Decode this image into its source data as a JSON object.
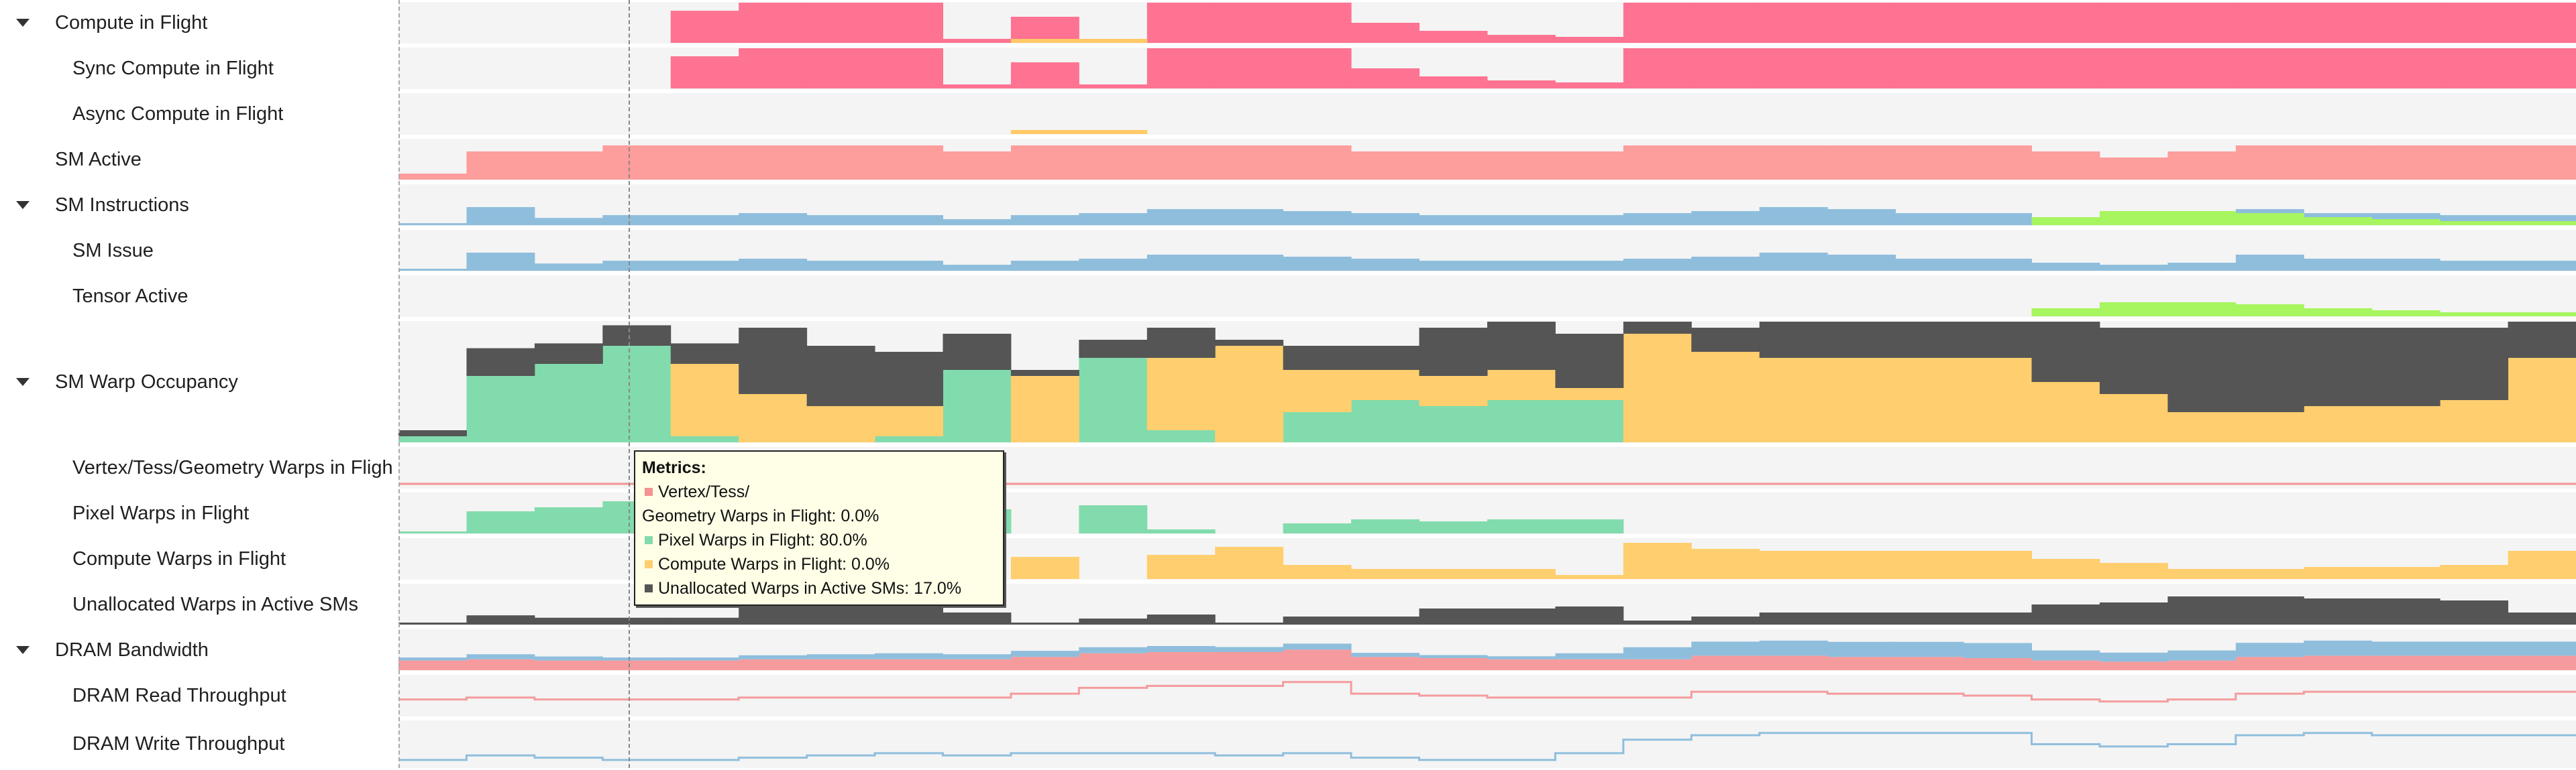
{
  "rows": [
    {
      "id": "compute-in-flight",
      "label": "Compute in Flight",
      "level": 0,
      "expanded": true
    },
    {
      "id": "sync-compute",
      "label": "Sync Compute in Flight",
      "level": 1
    },
    {
      "id": "async-compute",
      "label": "Async Compute in Flight",
      "level": 1
    },
    {
      "id": "sm-active",
      "label": "SM Active",
      "level": 0,
      "expanded": null
    },
    {
      "id": "sm-instructions",
      "label": "SM Instructions",
      "level": 0,
      "expanded": true
    },
    {
      "id": "sm-issue",
      "label": "SM Issue",
      "level": 1
    },
    {
      "id": "tensor-active",
      "label": "Tensor Active",
      "level": 1
    },
    {
      "id": "sm-warp-occupancy",
      "label": "SM Warp Occupancy",
      "level": 0,
      "expanded": true
    },
    {
      "id": "vtg-warps",
      "label": "Vertex/Tess/Geometry Warps in Fligh",
      "level": 1
    },
    {
      "id": "pixel-warps",
      "label": "Pixel Warps in Flight",
      "level": 1
    },
    {
      "id": "compute-warps",
      "label": "Compute Warps in Flight",
      "level": 1
    },
    {
      "id": "unallocated-warps",
      "label": "Unallocated Warps in Active SMs",
      "level": 1
    },
    {
      "id": "dram-bandwidth",
      "label": "DRAM Bandwidth",
      "level": 0,
      "expanded": true
    },
    {
      "id": "dram-read",
      "label": "DRAM Read Throughput",
      "level": 1
    },
    {
      "id": "dram-write",
      "label": "DRAM Write Throughput",
      "level": 1
    }
  ],
  "colors": {
    "sync": "#fe7392",
    "async": "#ffc966",
    "sm_active": "#fd9d9c",
    "sm_issue": "#8fbedd",
    "tensor": "#a7f55f",
    "vtg": "#f59292",
    "pixel": "#82dbac",
    "compute": "#ffce6e",
    "unallocated": "#555555",
    "dram_read": "#f59b9d",
    "dram_write": "#8fbedd",
    "row_bg": "#f4f4f4"
  },
  "tooltip": {
    "title": "Metrics:",
    "lines": [
      {
        "text": "Vertex/Tess/",
        "color": "#f59292"
      },
      {
        "text": "Geometry Warps in Flight: 0.0%",
        "color": null
      },
      {
        "text": "Pixel Warps in Flight: 80.0%",
        "color": "#82dbac"
      },
      {
        "text": "Compute Warps in Flight: 0.0%",
        "color": "#ffce6e"
      },
      {
        "text": "Unallocated Warps in Active SMs: 17.0%",
        "color": "#555555"
      }
    ]
  },
  "chart_data": {
    "type": "area",
    "x": [
      0,
      1,
      2,
      3,
      4,
      5,
      6,
      7,
      8,
      9,
      10,
      11,
      12,
      13,
      14,
      15,
      16,
      17,
      18,
      19,
      20,
      21,
      22,
      23,
      24,
      25,
      26,
      27,
      28,
      29,
      30,
      31
    ],
    "series": [
      {
        "name": "Sync Compute in Flight",
        "values": [
          0,
          0,
          0,
          0,
          0.8,
          1,
          1,
          1,
          0.1,
          0.65,
          0.1,
          1,
          1,
          1,
          0.5,
          0.3,
          0.2,
          0.15,
          1,
          1,
          1,
          1,
          1,
          1,
          1,
          1,
          1,
          1,
          1,
          1,
          1,
          1
        ]
      },
      {
        "name": "Async Compute in Flight",
        "values": [
          0,
          0,
          0,
          0,
          0,
          0,
          0,
          0,
          0,
          0.1,
          0.1,
          0,
          0,
          0,
          0,
          0,
          0,
          0,
          0,
          0,
          0,
          0,
          0,
          0,
          0,
          0,
          0,
          0,
          0,
          0,
          0,
          0
        ]
      },
      {
        "name": "SM Active",
        "values": [
          0.15,
          0.7,
          0.7,
          0.85,
          0.85,
          0.85,
          0.85,
          0.85,
          0.7,
          0.85,
          0.85,
          0.85,
          0.85,
          0.85,
          0.7,
          0.7,
          0.7,
          0.7,
          0.85,
          0.85,
          0.85,
          0.85,
          0.85,
          0.85,
          0.7,
          0.55,
          0.7,
          0.85,
          0.85,
          0.85,
          0.85,
          0.85
        ]
      },
      {
        "name": "SM Issue",
        "values": [
          0.05,
          0.45,
          0.18,
          0.25,
          0.25,
          0.3,
          0.25,
          0.25,
          0.15,
          0.25,
          0.3,
          0.4,
          0.4,
          0.35,
          0.3,
          0.25,
          0.25,
          0.25,
          0.3,
          0.35,
          0.45,
          0.4,
          0.3,
          0.3,
          0.2,
          0.15,
          0.2,
          0.4,
          0.3,
          0.3,
          0.25,
          0.25
        ]
      },
      {
        "name": "Tensor Active",
        "values": [
          0,
          0,
          0,
          0,
          0,
          0,
          0,
          0,
          0,
          0,
          0,
          0,
          0,
          0,
          0,
          0,
          0,
          0,
          0,
          0,
          0,
          0,
          0,
          0,
          0.2,
          0.35,
          0.35,
          0.3,
          0.2,
          0.15,
          0.1,
          0.1
        ]
      },
      {
        "name": "Pixel Warps in Flight",
        "values": [
          0.05,
          0.55,
          0.65,
          0.8,
          0.05,
          0,
          0,
          0.05,
          0.6,
          0,
          0.7,
          0.1,
          0,
          0.25,
          0.35,
          0.3,
          0.35,
          0.35,
          0,
          0,
          0,
          0,
          0,
          0,
          0,
          0,
          0,
          0,
          0,
          0,
          0,
          0
        ]
      },
      {
        "name": "Compute Warps in Flight",
        "values": [
          0,
          0,
          0,
          0,
          0.6,
          0.4,
          0.3,
          0.25,
          0,
          0.55,
          0,
          0.6,
          0.8,
          0.35,
          0.25,
          0.25,
          0.25,
          0.1,
          0.9,
          0.75,
          0.7,
          0.7,
          0.7,
          0.7,
          0.5,
          0.4,
          0.25,
          0.25,
          0.3,
          0.3,
          0.35,
          0.7
        ]
      },
      {
        "name": "Unallocated Warps in Active SMs",
        "values": [
          0.05,
          0.23,
          0.17,
          0.17,
          0.17,
          0.55,
          0.5,
          0.45,
          0.3,
          0.05,
          0.15,
          0.25,
          0.05,
          0.2,
          0.2,
          0.4,
          0.4,
          0.45,
          0.1,
          0.2,
          0.3,
          0.3,
          0.3,
          0.3,
          0.5,
          0.55,
          0.7,
          0.7,
          0.65,
          0.65,
          0.6,
          0.3
        ]
      },
      {
        "name": "DRAM Read Throughput",
        "values": [
          0.4,
          0.45,
          0.4,
          0.4,
          0.4,
          0.45,
          0.45,
          0.45,
          0.45,
          0.55,
          0.7,
          0.75,
          0.75,
          0.85,
          0.55,
          0.5,
          0.45,
          0.45,
          0.45,
          0.6,
          0.6,
          0.55,
          0.55,
          0.5,
          0.4,
          0.35,
          0.4,
          0.55,
          0.6,
          0.6,
          0.6,
          0.6
        ]
      },
      {
        "name": "DRAM Write Throughput",
        "values": [
          0.15,
          0.25,
          0.2,
          0.15,
          0.15,
          0.2,
          0.25,
          0.3,
          0.25,
          0.3,
          0.3,
          0.3,
          0.25,
          0.3,
          0.2,
          0.15,
          0.15,
          0.3,
          0.6,
          0.7,
          0.75,
          0.75,
          0.75,
          0.75,
          0.5,
          0.45,
          0.5,
          0.7,
          0.75,
          0.7,
          0.7,
          0.7
        ]
      }
    ]
  }
}
